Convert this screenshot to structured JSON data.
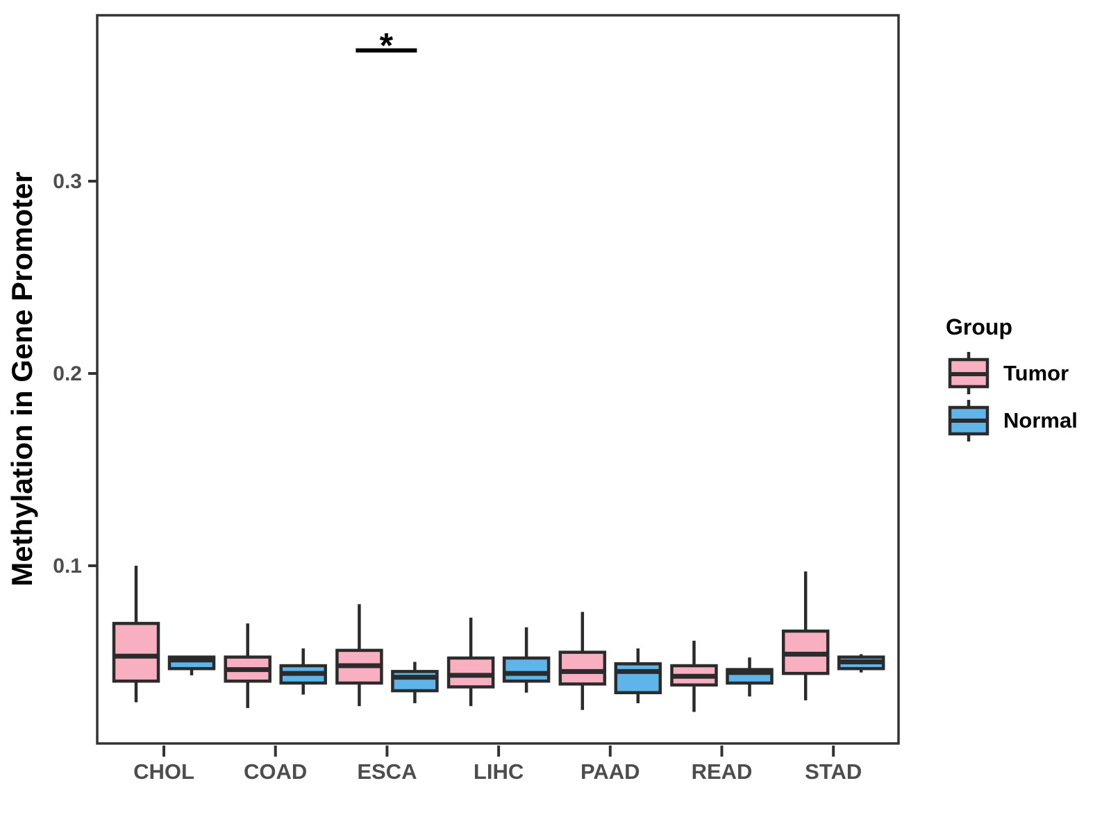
{
  "chart_data": {
    "type": "boxplot",
    "title": "",
    "xlabel": "",
    "ylabel": "Methylation in Gene Promoter",
    "categories": [
      "CHOL",
      "COAD",
      "ESCA",
      "LIHC",
      "PAAD",
      "READ",
      "STAD"
    ],
    "y_axis": {
      "ticks": [
        0.1,
        0.2,
        0.3
      ],
      "tick_labels": [
        "0.1",
        "0.2",
        "0.3"
      ],
      "range": [
        0.008,
        0.386
      ],
      "grid": false
    },
    "legend": {
      "title": "Group",
      "position": "right"
    },
    "series": [
      {
        "name": "Tumor",
        "color": "#F9AFC2",
        "boxes": [
          {
            "category": "CHOL",
            "min": 0.029,
            "q1": 0.04,
            "median": 0.053,
            "q3": 0.07,
            "max": 0.1
          },
          {
            "category": "COAD",
            "min": 0.026,
            "q1": 0.04,
            "median": 0.046,
            "q3": 0.0525,
            "max": 0.07
          },
          {
            "category": "ESCA",
            "min": 0.027,
            "q1": 0.039,
            "median": 0.048,
            "q3": 0.056,
            "max": 0.08
          },
          {
            "category": "LIHC",
            "min": 0.027,
            "q1": 0.037,
            "median": 0.043,
            "q3": 0.052,
            "max": 0.073
          },
          {
            "category": "PAAD",
            "min": 0.025,
            "q1": 0.0385,
            "median": 0.045,
            "q3": 0.055,
            "max": 0.076
          },
          {
            "category": "READ",
            "min": 0.024,
            "q1": 0.038,
            "median": 0.0425,
            "q3": 0.048,
            "max": 0.061
          },
          {
            "category": "STAD",
            "min": 0.03,
            "q1": 0.044,
            "median": 0.054,
            "q3": 0.066,
            "max": 0.097
          }
        ]
      },
      {
        "name": "Normal",
        "color": "#5FB4EA",
        "boxes": [
          {
            "category": "CHOL",
            "min": 0.043,
            "q1": 0.0465,
            "median": 0.051,
            "q3": 0.0525,
            "max": 0.0525
          },
          {
            "category": "COAD",
            "min": 0.033,
            "q1": 0.039,
            "median": 0.044,
            "q3": 0.048,
            "max": 0.057
          },
          {
            "category": "ESCA",
            "min": 0.0285,
            "q1": 0.035,
            "median": 0.042,
            "q3": 0.045,
            "max": 0.05
          },
          {
            "category": "LIHC",
            "min": 0.034,
            "q1": 0.04,
            "median": 0.044,
            "q3": 0.052,
            "max": 0.068
          },
          {
            "category": "PAAD",
            "min": 0.0285,
            "q1": 0.034,
            "median": 0.045,
            "q3": 0.049,
            "max": 0.057
          },
          {
            "category": "READ",
            "min": 0.032,
            "q1": 0.039,
            "median": 0.0445,
            "q3": 0.046,
            "max": 0.0523
          },
          {
            "category": "STAD",
            "min": 0.0445,
            "q1": 0.0465,
            "median": 0.05,
            "q3": 0.0525,
            "max": 0.054
          }
        ]
      }
    ],
    "annotations": [
      {
        "type": "significance-bracket",
        "label": "*",
        "category": "ESCA",
        "between": [
          "Tumor",
          "Normal"
        ],
        "y_value": 0.368
      }
    ]
  },
  "style": {
    "background": "#FFFFFF",
    "panel_border_color": "#333333",
    "box_border_color": "#2B2B2B",
    "tick_color": "#333333",
    "tick_label_color": "#4D4D4D",
    "annotation_color": "#000000",
    "tumor_fill": "#F9AFC2",
    "normal_fill": "#5FB4EA"
  }
}
